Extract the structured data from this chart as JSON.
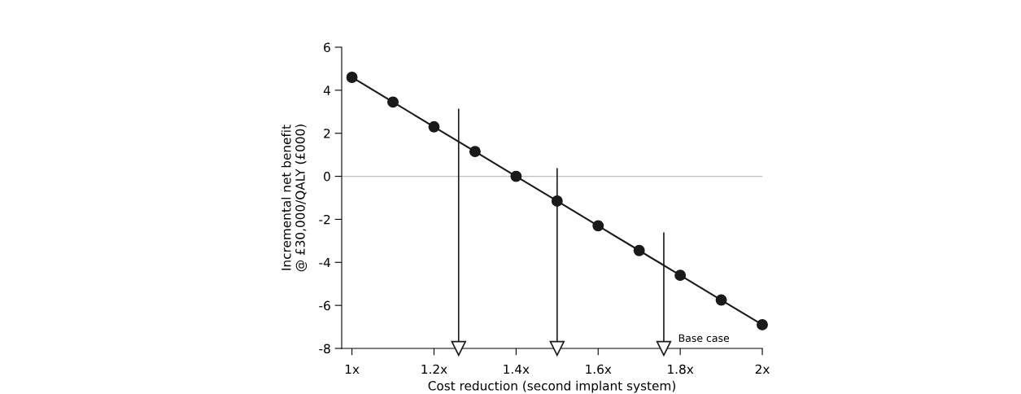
{
  "chart_data": {
    "type": "line",
    "xlabel": "Cost reduction (second implant system)",
    "ylabel": "Incremental net benefit\n@ £30,000/QALY (£000)",
    "x": [
      1.0,
      1.1,
      1.2,
      1.3,
      1.4,
      1.5,
      1.6,
      1.7,
      1.8,
      1.9,
      2.0
    ],
    "series": [
      {
        "color": "#1a1a1a",
        "values": [
          4.6,
          3.45,
          2.3,
          1.15,
          0.0,
          -1.15,
          -2.3,
          -3.45,
          -4.6,
          -5.75,
          -6.9
        ]
      }
    ],
    "marker": "circle",
    "xlim": [
      0.975,
      2.0
    ],
    "xticks": [
      {
        "value": 1.0,
        "label": "1x"
      },
      {
        "value": 1.2,
        "label": "1.2x"
      },
      {
        "value": 1.4,
        "label": "1.4x"
      },
      {
        "value": 1.6,
        "label": "1.6x"
      },
      {
        "value": 1.8,
        "label": "1.8x"
      },
      {
        "value": 2.0,
        "label": "2x"
      }
    ],
    "ylim": [
      -8,
      6
    ],
    "yticks": [
      -8,
      -6,
      -4,
      -2,
      0,
      2,
      4,
      6
    ],
    "grid": false,
    "ref_lines": [
      {
        "axis": "y",
        "value": 0,
        "color": "#c0c0c0"
      },
      {
        "axis": "x",
        "value": 1.26,
        "label": null,
        "color": "#1a1a1a"
      },
      {
        "axis": "x",
        "value": 1.5,
        "label": null,
        "color": "#1a1a1a"
      },
      {
        "axis": "x",
        "value": 1.76,
        "label": "Base case",
        "color": "#1a1a1a"
      }
    ]
  }
}
